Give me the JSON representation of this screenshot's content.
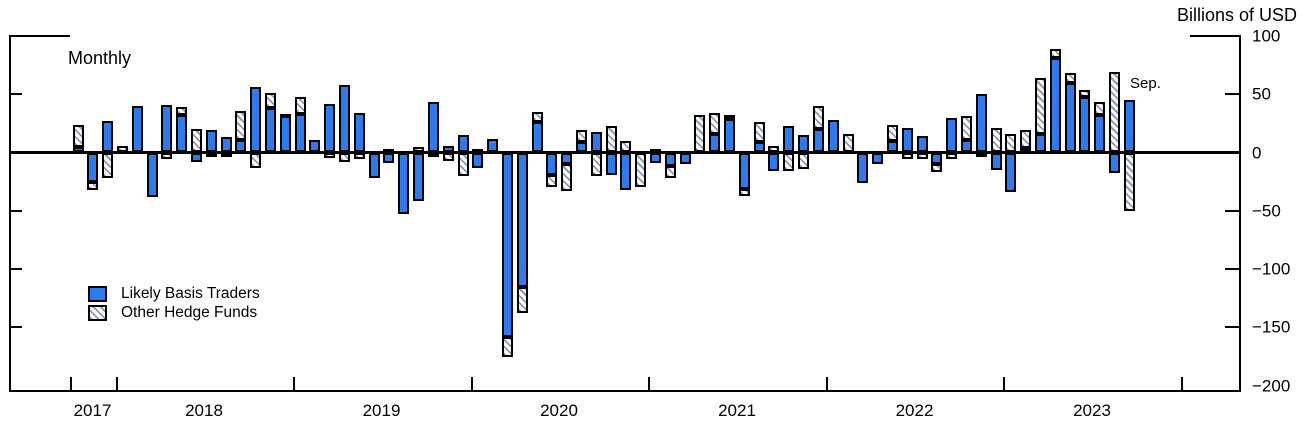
{
  "title": {
    "units_label": "Billions of USD",
    "frequency_label": "Monthly"
  },
  "annotations": {
    "last_point_label": "Sep."
  },
  "legend": {
    "items": [
      {
        "label": "Likely Basis Traders",
        "style": "solid",
        "color": "#2e7bf0"
      },
      {
        "label": "Other Hedge Funds",
        "style": "hatched",
        "color": "#8f9ab3"
      }
    ]
  },
  "colors": {
    "basis_traders_blue": "#2e7bf0",
    "hatch_stripe": "#8f9ab3",
    "axis": "#000000"
  },
  "chart_data": {
    "type": "bar",
    "stacked": true,
    "title": "",
    "xlabel": "",
    "ylabel": "Billions of USD",
    "ylim": [
      -200,
      100
    ],
    "yticks": [
      100,
      50,
      0,
      -50,
      -100,
      -150,
      -200
    ],
    "grid": false,
    "legend_position": "lower-left",
    "x_year_labels": [
      "2017",
      "2018",
      "2019",
      "2020",
      "2021",
      "2022",
      "2023"
    ],
    "x": [
      "2017-10",
      "2017-11",
      "2017-12",
      "2018-01",
      "2018-02",
      "2018-03",
      "2018-04",
      "2018-05",
      "2018-06",
      "2018-07",
      "2018-08",
      "2018-09",
      "2018-10",
      "2018-11",
      "2018-12",
      "2019-01",
      "2019-02",
      "2019-03",
      "2019-04",
      "2019-05",
      "2019-06",
      "2019-07",
      "2019-08",
      "2019-09",
      "2019-10",
      "2019-11",
      "2019-12",
      "2020-01",
      "2020-02",
      "2020-03",
      "2020-04",
      "2020-05",
      "2020-06",
      "2020-07",
      "2020-08",
      "2020-09",
      "2020-10",
      "2020-11",
      "2020-12",
      "2021-01",
      "2021-02",
      "2021-03",
      "2021-04",
      "2021-05",
      "2021-06",
      "2021-07",
      "2021-08",
      "2021-09",
      "2021-10",
      "2021-11",
      "2021-12",
      "2022-01",
      "2022-02",
      "2022-03",
      "2022-04",
      "2022-05",
      "2022-06",
      "2022-07",
      "2022-08",
      "2022-09",
      "2022-10",
      "2022-11",
      "2022-12",
      "2023-01",
      "2023-02",
      "2023-03",
      "2023-04",
      "2023-05",
      "2023-06",
      "2023-07",
      "2023-08",
      "2023-09"
    ],
    "series": [
      {
        "name": "Likely Basis Traders",
        "values": [
          5,
          -25,
          27,
          0,
          40,
          -38,
          41,
          32,
          -8,
          19,
          13,
          11,
          56,
          38,
          31,
          33,
          11,
          42,
          58,
          34,
          -22,
          -9,
          -53,
          -42,
          43,
          6,
          15,
          -13,
          12,
          -158,
          -115,
          26,
          -19,
          -10,
          9,
          18,
          -19,
          -32,
          0,
          -9,
          -12,
          -10,
          0,
          16,
          29,
          -31,
          9,
          -16,
          23,
          15,
          20,
          28,
          0,
          -26,
          -10,
          10,
          21,
          14,
          -10,
          30,
          11,
          50,
          -15,
          -34,
          4,
          16,
          81,
          60,
          48,
          32,
          -18,
          45
        ]
      },
      {
        "name": "Other Hedge Funds",
        "values": [
          19,
          -7,
          -22,
          6,
          0,
          0,
          -6,
          7,
          20,
          -3,
          -3,
          25,
          -13,
          13,
          2,
          15,
          0,
          -5,
          -8,
          -6,
          0,
          3,
          0,
          5,
          -4,
          -7,
          -20,
          3,
          0,
          -17,
          -23,
          9,
          -11,
          -23,
          10,
          -20,
          23,
          10,
          -30,
          3,
          -10,
          0,
          32,
          18,
          3,
          -6,
          17,
          6,
          -16,
          -14,
          20,
          0,
          16,
          0,
          0,
          14,
          -6,
          -6,
          -7,
          -6,
          20,
          -3,
          21,
          16,
          15,
          48,
          8,
          8,
          6,
          11,
          69,
          -50
        ]
      }
    ]
  }
}
